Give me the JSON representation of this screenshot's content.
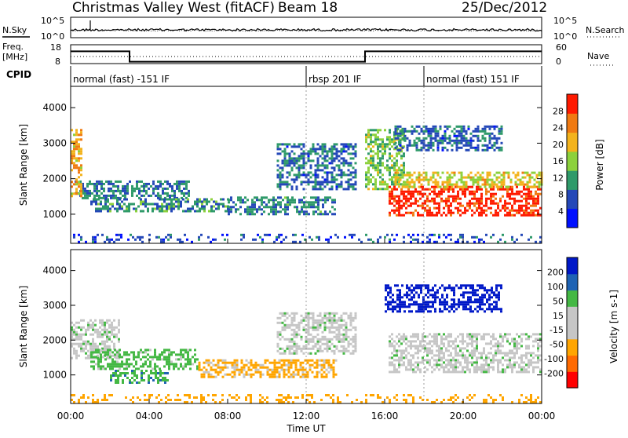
{
  "header": {
    "station": "Christmas Valley West (fitACF)",
    "beam": "Beam 18",
    "date": "25/Dec/2012"
  },
  "colors": {
    "power_scale": [
      "#0010ff",
      "#2448b8",
      "#2f9a6a",
      "#8cd13c",
      "#f3b31c",
      "#f07a12",
      "#ff1a00"
    ],
    "velocity_scale": [
      "#ff0000",
      "#ff6a00",
      "#ffa500",
      "#c6c6c6",
      "#c6c6c6",
      "#44b844",
      "#1f63b4",
      "#0018c8"
    ],
    "grey": "#c6c6c6"
  },
  "noise_panel": {
    "left_label": "N.Sky",
    "right_label": "N.Search",
    "left_ticks": [
      "10^5",
      "10^0"
    ],
    "right_ticks": [
      "10^5",
      "10^0"
    ]
  },
  "freq_panel": {
    "left_label_1": "Freq.",
    "left_label_2": "[MHz]",
    "right_label": "Nave",
    "left_ticks": [
      "18",
      "8"
    ],
    "right_ticks": [
      "60",
      "0"
    ],
    "freq_steps": [
      {
        "t0": 0.0,
        "t1": 3.0,
        "mhz": 14.5
      },
      {
        "t0": 3.0,
        "t1": 15.0,
        "mhz": 9.0
      },
      {
        "t0": 15.0,
        "t1": 24.0,
        "mhz": 14.5
      }
    ]
  },
  "cpid": {
    "label": "CPID",
    "segments": [
      {
        "start": 0.0,
        "text": "normal (fast) -151 IF"
      },
      {
        "start": 12.0,
        "text": "rbsp 201 IF"
      },
      {
        "start": 18.0,
        "text": "normal (fast) 151 IF"
      }
    ]
  },
  "chart_data": [
    {
      "type": "heatmap",
      "title": "",
      "quantity": "Power",
      "ylabel": "Slant Range [km]",
      "colorbar_label": "Power [dB]",
      "colorbar_ticks": [
        "4",
        "8",
        "12",
        "16",
        "20",
        "24",
        "28"
      ],
      "colorbar_range": [
        0,
        30
      ],
      "x_range_hours": [
        0,
        24
      ],
      "ylim": [
        180,
        4600
      ],
      "yticks": [
        1000,
        2000,
        3000,
        4000
      ],
      "regions": [
        {
          "t0": 0.2,
          "t1": 6.0,
          "r0": 1450,
          "r1": 1950,
          "value": 9
        },
        {
          "t0": 1.0,
          "t1": 8.0,
          "r0": 1100,
          "r1": 1450,
          "value": 10
        },
        {
          "t0": 8.0,
          "t1": 13.5,
          "r0": 1000,
          "r1": 1500,
          "value": 9
        },
        {
          "t0": 10.5,
          "t1": 14.5,
          "r0": 1700,
          "r1": 3000,
          "value": 8
        },
        {
          "t0": 0.0,
          "t1": 0.6,
          "r0": 1500,
          "r1": 3400,
          "value": 20
        },
        {
          "t0": 15.0,
          "t1": 17.0,
          "r0": 1700,
          "r1": 3400,
          "value": 14
        },
        {
          "t0": 16.2,
          "t1": 24.0,
          "r0": 950,
          "r1": 1800,
          "value": 28
        },
        {
          "t0": 16.5,
          "t1": 24.0,
          "r0": 1800,
          "r1": 2200,
          "value": 18
        },
        {
          "t0": 16.5,
          "t1": 22.0,
          "r0": 2800,
          "r1": 3500,
          "value": 8
        },
        {
          "t0": 0.0,
          "t1": 24.0,
          "r0": 200,
          "r1": 450,
          "value": 6
        }
      ]
    },
    {
      "type": "heatmap",
      "title": "",
      "quantity": "Velocity",
      "ylabel": "Slant Range [km]",
      "colorbar_label": "Velocity [m s-1]",
      "colorbar_ticks": [
        "-200",
        "-100",
        "-50",
        "-15",
        "15",
        "50",
        "100",
        "200"
      ],
      "colorbar_range": [
        -250,
        250
      ],
      "x_range_hours": [
        0,
        24
      ],
      "ylim": [
        180,
        4600
      ],
      "yticks": [
        1000,
        2000,
        3000,
        4000
      ],
      "regions": [
        {
          "t0": 0.0,
          "t1": 2.5,
          "r0": 1500,
          "r1": 2600,
          "value": 0
        },
        {
          "t0": 1.0,
          "t1": 6.5,
          "r0": 1150,
          "r1": 1750,
          "value": 30
        },
        {
          "t0": 2.0,
          "t1": 5.0,
          "r0": 800,
          "r1": 1150,
          "value": 40
        },
        {
          "t0": 6.5,
          "t1": 13.5,
          "r0": 950,
          "r1": 1450,
          "value": -60
        },
        {
          "t0": 10.5,
          "t1": 14.5,
          "r0": 1600,
          "r1": 2800,
          "value": 0
        },
        {
          "t0": 16.2,
          "t1": 24.0,
          "r0": 1100,
          "r1": 2200,
          "value": 0
        },
        {
          "t0": 16.0,
          "t1": 22.0,
          "r0": 2800,
          "r1": 3600,
          "value": 120
        },
        {
          "t0": 0.0,
          "t1": 24.0,
          "r0": 200,
          "r1": 450,
          "value": -70
        }
      ]
    }
  ],
  "x_axis": {
    "label": "Time UT",
    "ticks": [
      "00:00",
      "04:00",
      "08:00",
      "12:00",
      "16:00",
      "20:00",
      "00:00"
    ]
  }
}
